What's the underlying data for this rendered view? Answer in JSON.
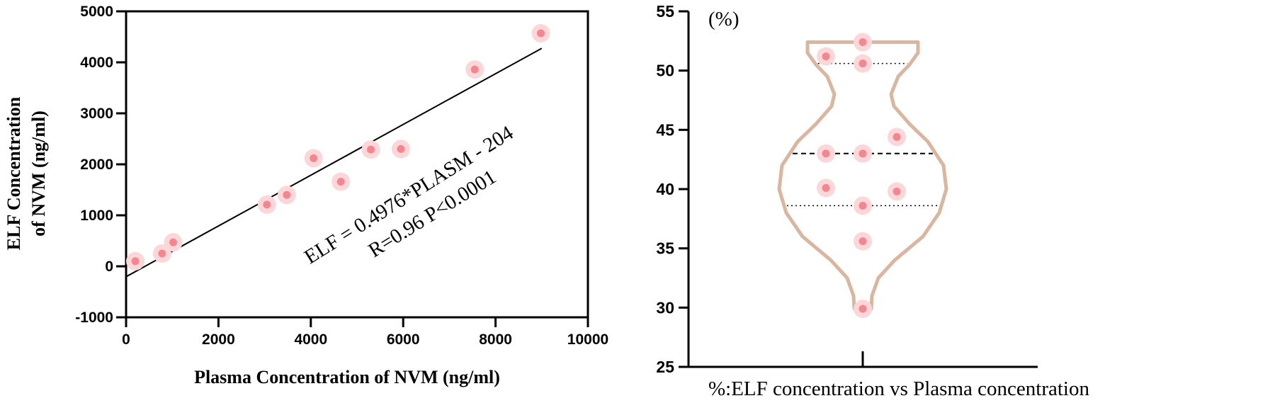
{
  "chart_data": [
    {
      "type": "scatter",
      "xlabel": "Plasma Concentration of NVM (ng/ml)",
      "ylabel_line1": "ELF Concentration",
      "ylabel_line2": "of NVM (ng/ml)",
      "xlim": [
        0,
        10000
      ],
      "ylim": [
        -1000,
        5000
      ],
      "x_ticks": [
        0,
        2000,
        4000,
        6000,
        8000,
        10000
      ],
      "y_ticks": [
        -1000,
        0,
        1000,
        2000,
        3000,
        4000,
        5000
      ],
      "points": [
        {
          "x": 200,
          "y": 100
        },
        {
          "x": 780,
          "y": 250
        },
        {
          "x": 1020,
          "y": 470
        },
        {
          "x": 3050,
          "y": 1210
        },
        {
          "x": 3480,
          "y": 1400
        },
        {
          "x": 4060,
          "y": 2120
        },
        {
          "x": 4650,
          "y": 1660
        },
        {
          "x": 5300,
          "y": 2290
        },
        {
          "x": 5950,
          "y": 2300
        },
        {
          "x": 7550,
          "y": 3860
        },
        {
          "x": 8980,
          "y": 4570
        }
      ],
      "fit": {
        "slope": 0.4976,
        "intercept": -204,
        "x_range": [
          0,
          9000
        ]
      },
      "annotation_line1": "ELF = 0.4976*PLASM - 204",
      "annotation_line2": "R=0.96   P<0.0001",
      "grid": false,
      "point_color": "#f4868f",
      "halo_color": "#fbd7d9"
    },
    {
      "type": "violin",
      "unit_label": "(%)",
      "caption": "%:ELF concentration vs Plasma concentration",
      "ylim": [
        25,
        55
      ],
      "y_ticks": [
        25,
        30,
        35,
        40,
        45,
        50,
        55
      ],
      "median": 43.0,
      "quartiles": [
        38.6,
        50.6
      ],
      "values": [
        52.4,
        51.2,
        50.6,
        44.4,
        43.0,
        43.0,
        40.1,
        39.8,
        38.6,
        35.6,
        29.9
      ],
      "violin_color": "#d8b6a0",
      "point_color": "#f4868f",
      "halo_color": "#fbd7d9"
    }
  ]
}
